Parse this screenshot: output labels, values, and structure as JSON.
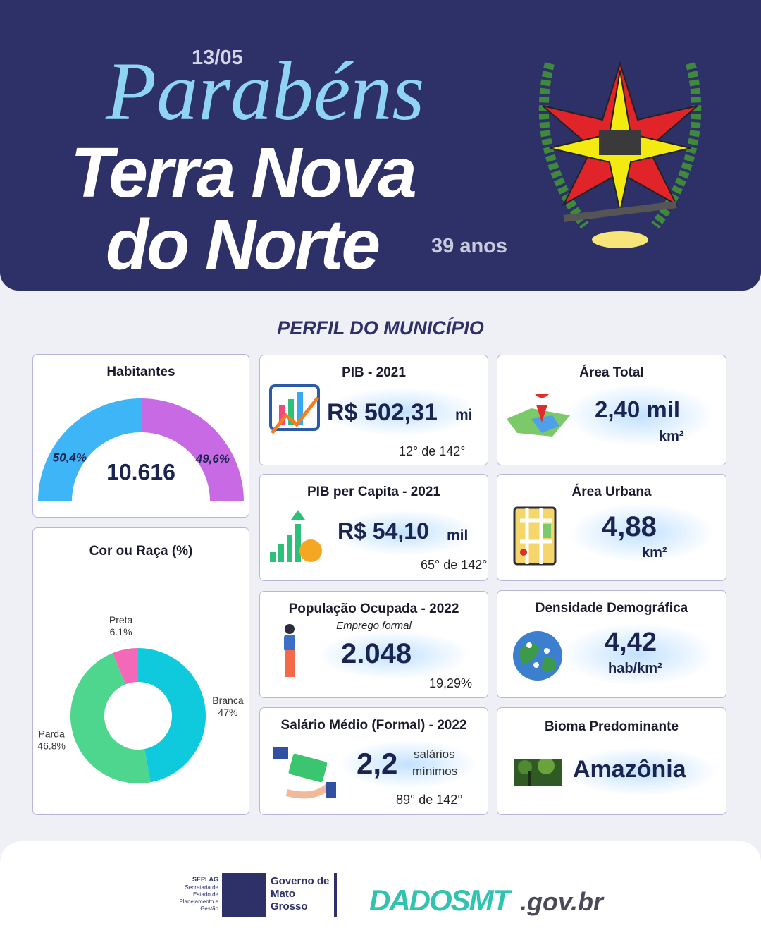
{
  "header": {
    "date": "13/05",
    "greeting": "Parabéns",
    "city_line1": "Terra Nova",
    "city_line2": "do Norte",
    "age": "39 anos"
  },
  "section_title": "PERFIL DO MUNICÍPIO",
  "chart_data": [
    {
      "type": "semi-donut",
      "title": "Habitantes",
      "values": [
        50.4,
        49.6
      ],
      "value_labels": [
        "50,4%",
        "49,6%"
      ],
      "colors": [
        "#3db5f6",
        "#c86ae3"
      ],
      "total_label": "10.616"
    },
    {
      "type": "donut",
      "title": "Cor ou Raça (%)",
      "categories": [
        "Branca",
        "Parda",
        "Preta"
      ],
      "values": [
        47,
        46.8,
        6.1
      ],
      "value_labels": [
        "47%",
        "46.8%",
        "6.1%"
      ],
      "colors": [
        "#0fcadc",
        "#4fd68e",
        "#f468b8"
      ]
    }
  ],
  "cards": {
    "pib": {
      "title": "PIB - 2021",
      "value": "R$ 502,31",
      "unit": "mi",
      "rank": "12° de 142°"
    },
    "pib_capita": {
      "title": "PIB per Capita - 2021",
      "value": "R$ 54,10",
      "unit": "mil",
      "rank": "65° de 142°"
    },
    "pop_ocupada": {
      "title": "População  Ocupada - 2022",
      "subtitle": "Emprego formal",
      "value": "2.048",
      "rank": "19,29%"
    },
    "salario": {
      "title": "Salário Médio (Formal) - 2022",
      "value": "2,2",
      "unit_line1": "salários",
      "unit_line2": "mínimos",
      "rank": "89° de 142°"
    },
    "area_total": {
      "title": "Área Total",
      "value": "2,40 mil",
      "unit": "km²"
    },
    "area_urbana": {
      "title": "Área Urbana",
      "value": "4,88",
      "unit": "km²"
    },
    "densidade": {
      "title": "Densidade Demográfica",
      "value": "4,42",
      "unit": "hab/km²"
    },
    "bioma": {
      "title": "Bioma Predominante",
      "value": "Amazônia"
    }
  },
  "footer": {
    "seplag": "SEPLAG",
    "seplag_name": "Secretaria de Estado de Planejamento e Gestão",
    "gov_line1": "Governo de",
    "gov_line2": "Mato",
    "gov_line3": "Grosso",
    "brand": "DADOSMT",
    "domain": ".gov.br"
  }
}
